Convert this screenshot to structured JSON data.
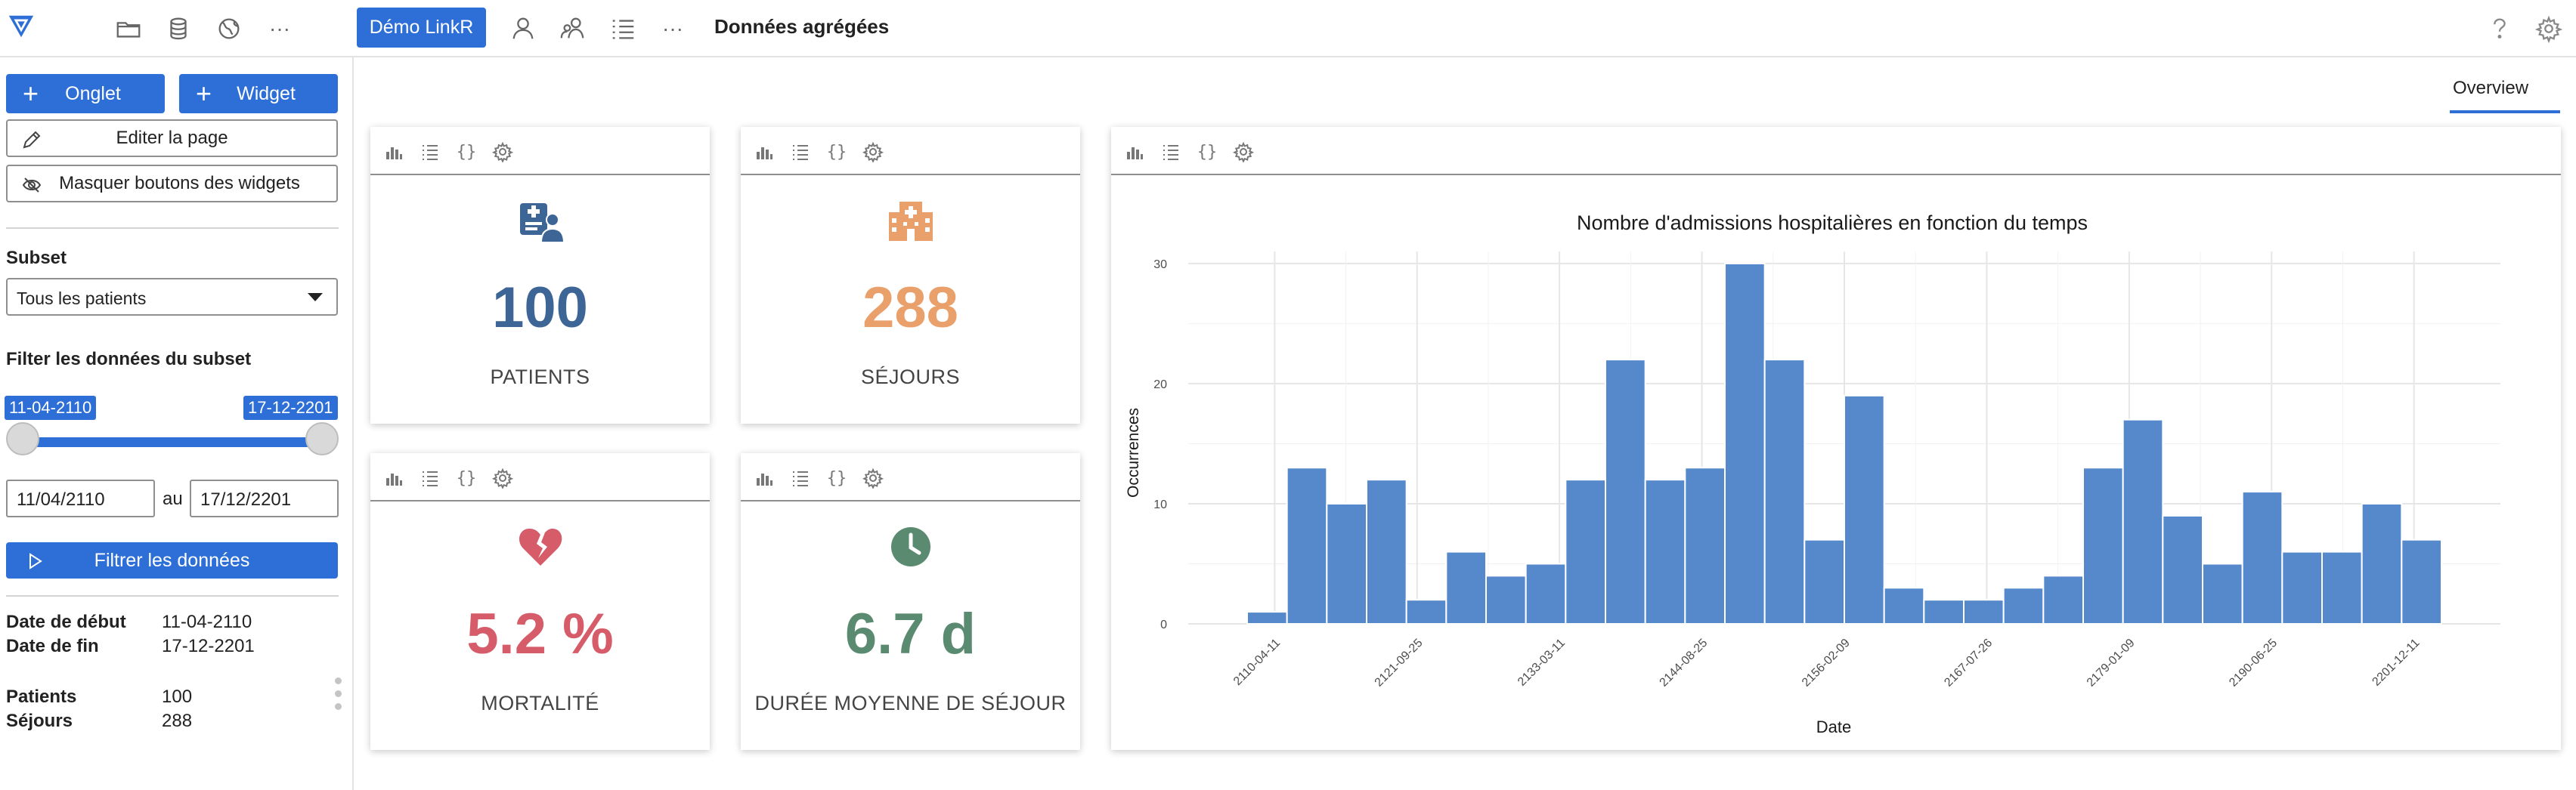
{
  "app": {
    "project_button": "Démo LinkR",
    "page_title": "Données agrégées",
    "menu_more": "···"
  },
  "toolbar_icons": [
    "logo-icon",
    "folder-icon",
    "database-icon",
    "globe-icon",
    "more-icon",
    "user-icon",
    "users-icon",
    "list-icon",
    "more-icon",
    "help-icon",
    "gear-icon"
  ],
  "sidebar": {
    "tab_button": "Onglet",
    "widget_button": "Widget",
    "edit_page_button": "Editer la page",
    "hide_widget_buttons": "Masquer boutons des widgets",
    "subset_label": "Subset",
    "subset_value": "Tous les patients",
    "filter_label": "Filter les données du subset",
    "slider": {
      "min_label": "11-04-2110",
      "max_label": "17-12-2201",
      "start_fraction": 0.0,
      "end_fraction": 1.0
    },
    "date_start": "11/04/2110",
    "date_sep": "au",
    "date_end": "17/12/2201",
    "filter_button": "Filtrer les données",
    "info": [
      {
        "label": "Date de début",
        "value": "11-04-2110"
      },
      {
        "label": "Date de fin",
        "value": "17-12-2201"
      },
      {
        "label": "Patients",
        "value": "100"
      },
      {
        "label": "Séjours",
        "value": "288"
      }
    ]
  },
  "tabs": {
    "overview": "Overview"
  },
  "card_toolbar": {
    "code_glyph": "{}"
  },
  "kpis": [
    {
      "value": "100",
      "label": "PATIENTS",
      "color": "#3d6596",
      "icon": "patient-card-icon"
    },
    {
      "value": "288",
      "label": "SÉJOURS",
      "color": "#e9a06a",
      "icon": "hospital-icon"
    },
    {
      "value": "5.2 %",
      "label": "MORTALITÉ",
      "color": "#d65c69",
      "icon": "broken-heart-icon"
    },
    {
      "value": "6.7 d",
      "label": "DURÉE MOYENNE DE SÉJOUR",
      "color": "#5a8a70",
      "icon": "clock-icon"
    }
  ],
  "chart_data": {
    "type": "bar",
    "title": "Nombre d'admissions hospitalières en fonction du temps",
    "xlabel": "Date",
    "ylabel": "Occurrences",
    "x_ticks": [
      "2110-04-11",
      "2121-09-25",
      "2133-03-11",
      "2144-08-25",
      "2156-02-09",
      "2167-07-26",
      "2179-01-09",
      "2190-06-25",
      "2201-12-11"
    ],
    "y_ticks": [
      0,
      10,
      20,
      30
    ],
    "ylim": [
      0,
      31
    ],
    "values": [
      1,
      13,
      10,
      12,
      2,
      6,
      4,
      5,
      12,
      22,
      12,
      13,
      30,
      22,
      7,
      19,
      3,
      2,
      2,
      3,
      4,
      13,
      17,
      9,
      5,
      11,
      6,
      6,
      10,
      7
    ],
    "bar_color": "#5689cb",
    "grid": true
  }
}
